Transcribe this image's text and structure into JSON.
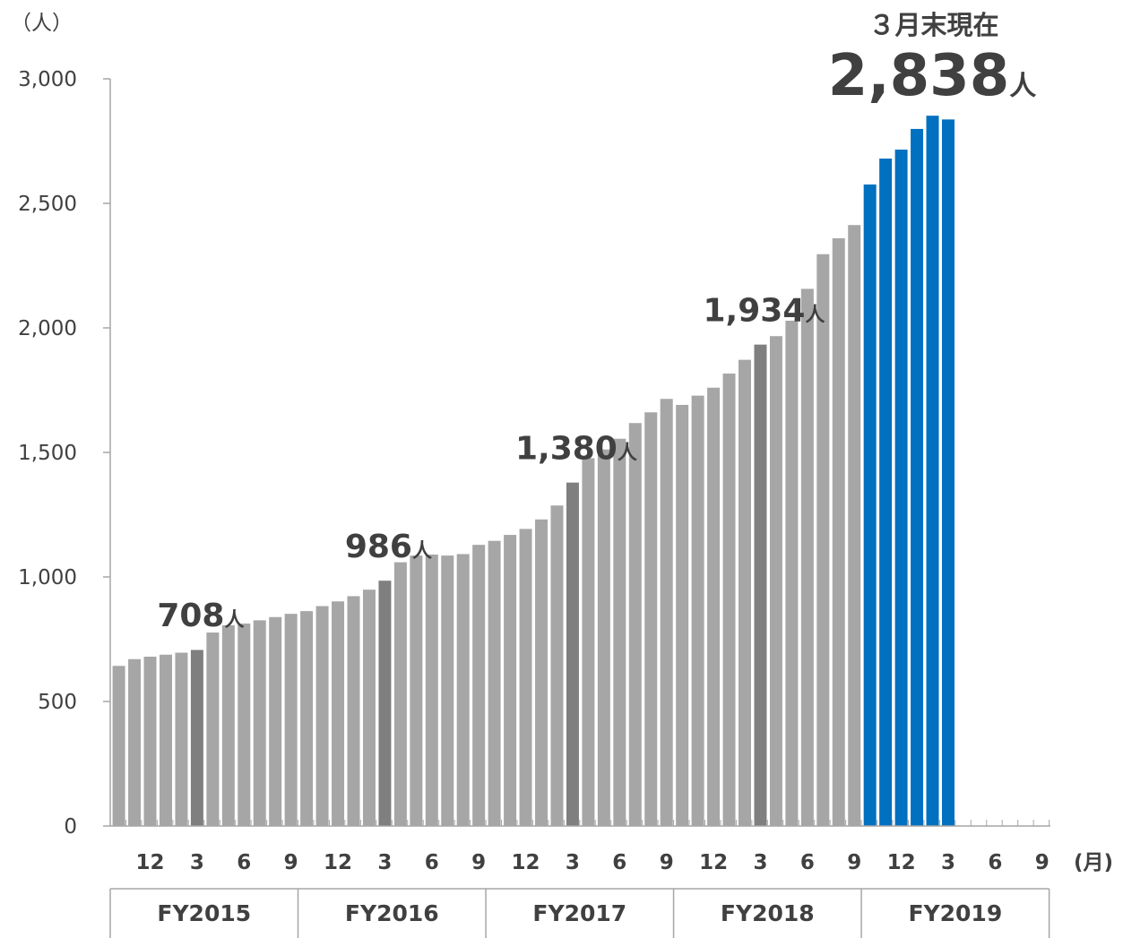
{
  "chart_data": {
    "type": "bar",
    "y_unit": "（人）",
    "x_unit": "(月)",
    "ylim": [
      0,
      3000
    ],
    "yticks": [
      0,
      500,
      1000,
      1500,
      2000,
      2500,
      3000
    ],
    "ytick_labels": [
      "0",
      "500",
      "1,000",
      "1,500",
      "2,000",
      "2,500",
      "3,000"
    ],
    "grid": false,
    "x_tick_labels": [
      "12",
      "3",
      "6",
      "9",
      "12",
      "3",
      "6",
      "9",
      "12",
      "3",
      "6",
      "9",
      "12",
      "3",
      "6",
      "9",
      "12",
      "3",
      "6",
      "9"
    ],
    "fiscal_years": [
      "FY2015",
      "FY2016",
      "FY2017",
      "FY2018",
      "FY2019"
    ],
    "values": [
      644,
      671,
      681,
      689,
      697,
      708,
      778,
      807,
      814,
      827,
      840,
      853,
      864,
      884,
      903,
      924,
      950,
      986,
      1060,
      1087,
      1091,
      1087,
      1093,
      1130,
      1146,
      1170,
      1194,
      1232,
      1288,
      1380,
      1478,
      1513,
      1556,
      1619,
      1662,
      1716,
      1692,
      1729,
      1761,
      1818,
      1873,
      1934,
      1968,
      2030,
      2158,
      2297,
      2361,
      2414,
      2577,
      2681,
      2717,
      2800,
      2853,
      2838
    ],
    "colors": {
      "normal": "#a6a6a6",
      "highlight": "#7f7f7f",
      "current": "#0070c0"
    },
    "highlight_values": [
      "708",
      "986",
      "1,380",
      "1,934"
    ],
    "annotations": [
      {
        "value": "708",
        "unit": "人"
      },
      {
        "value": "986",
        "unit": "人"
      },
      {
        "value": "1,380",
        "unit": "人"
      },
      {
        "value": "1,934",
        "unit": "人"
      }
    ],
    "callout": {
      "label": "３月末現在",
      "value": "2,838",
      "unit": "人"
    }
  }
}
